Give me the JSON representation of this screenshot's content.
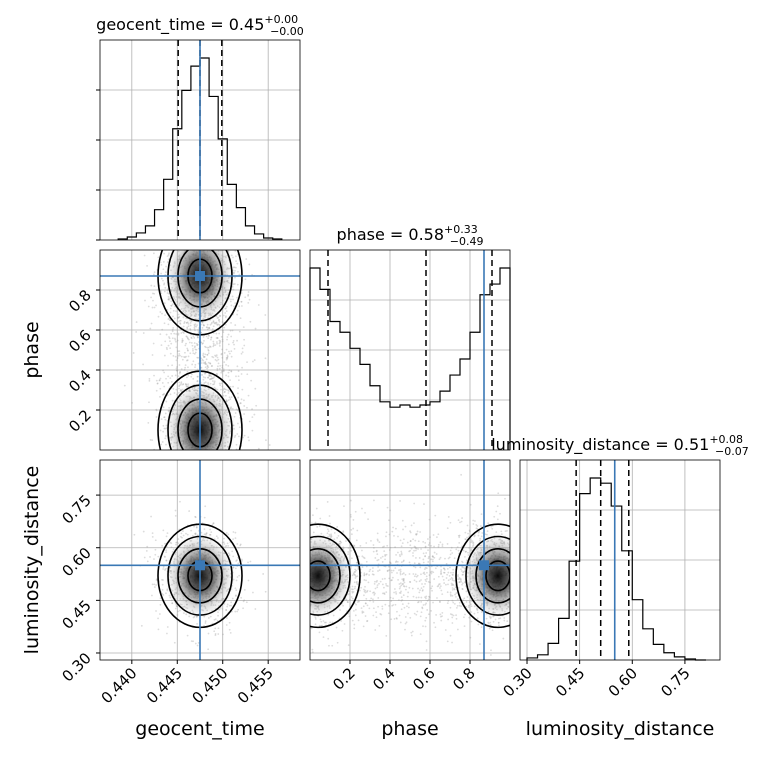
{
  "chart_data": {
    "type": "corner",
    "parameters": [
      "geocent_time",
      "phase",
      "luminosity_distance"
    ],
    "truths": {
      "geocent_time": 0.4475,
      "phase": 0.87,
      "luminosity_distance": 0.55
    },
    "colors": {
      "truth": "#3a78b5",
      "hist": "#000000",
      "grid": "#b0b0b0",
      "points": "#9a9a9a"
    },
    "grid": true,
    "titles": [
      {
        "param": "geocent_time",
        "text": "geocent_time = 0.45",
        "sup": "+0.00",
        "sub": "−0.00"
      },
      {
        "param": "phase",
        "text": "phase = 0.58",
        "sup": "+0.33",
        "sub": "−0.49"
      },
      {
        "param": "luminosity_distance",
        "text": "luminosity_distance = 0.51",
        "sup": "+0.08",
        "sub": "−0.07"
      }
    ],
    "axes": {
      "geocent_time": {
        "range": [
          0.4365,
          0.4585
        ],
        "ticks": [
          "0.440",
          "0.445",
          "0.450",
          "0.455"
        ],
        "tick_values": [
          0.44,
          0.445,
          0.45,
          0.455
        ],
        "label": "geocent_time"
      },
      "phase": {
        "range": [
          0.0,
          1.0
        ],
        "ticks": [
          "0.2",
          "0.4",
          "0.6",
          "0.8"
        ],
        "tick_values": [
          0.2,
          0.4,
          0.6,
          0.8
        ],
        "label": "phase"
      },
      "luminosity_distance": {
        "range": [
          0.28,
          0.85
        ],
        "ticks": [
          "0.30",
          "0.45",
          "0.60",
          "0.75"
        ],
        "tick_values": [
          0.3,
          0.45,
          0.6,
          0.75
        ],
        "label": "luminosity_distance"
      }
    },
    "histograms": {
      "geocent_time": {
        "bin_edges": [
          0.4385,
          0.4395,
          0.4405,
          0.4415,
          0.4425,
          0.4435,
          0.4445,
          0.4455,
          0.4465,
          0.4475,
          0.4485,
          0.4495,
          0.4505,
          0.4515,
          0.4525,
          0.4535,
          0.4545,
          0.4555,
          0.4565
        ],
        "counts": [
          1,
          3,
          7,
          14,
          30,
          60,
          110,
          148,
          172,
          180,
          142,
          100,
          55,
          32,
          14,
          6,
          2,
          1
        ],
        "quantiles": [
          0.4451,
          0.4475,
          0.4499
        ]
      },
      "phase": {
        "bin_edges": [
          0.0,
          0.05,
          0.1,
          0.15,
          0.2,
          0.25,
          0.3,
          0.35,
          0.4,
          0.45,
          0.5,
          0.55,
          0.6,
          0.65,
          0.7,
          0.75,
          0.8,
          0.85,
          0.9,
          0.95,
          1.0
        ],
        "counts": [
          170,
          150,
          120,
          110,
          95,
          80,
          60,
          45,
          40,
          42,
          40,
          42,
          45,
          55,
          70,
          85,
          110,
          145,
          155,
          170
        ],
        "quantiles": [
          0.09,
          0.58,
          0.91
        ]
      },
      "luminosity_distance": {
        "bin_edges": [
          0.3,
          0.33,
          0.36,
          0.39,
          0.42,
          0.45,
          0.48,
          0.51,
          0.54,
          0.57,
          0.6,
          0.63,
          0.66,
          0.69,
          0.72,
          0.75,
          0.78,
          0.81
        ],
        "counts": [
          2,
          5,
          16,
          40,
          95,
          160,
          175,
          170,
          148,
          105,
          58,
          30,
          15,
          7,
          3,
          1,
          0
        ],
        "quantiles": [
          0.44,
          0.51,
          0.59
        ]
      }
    }
  }
}
